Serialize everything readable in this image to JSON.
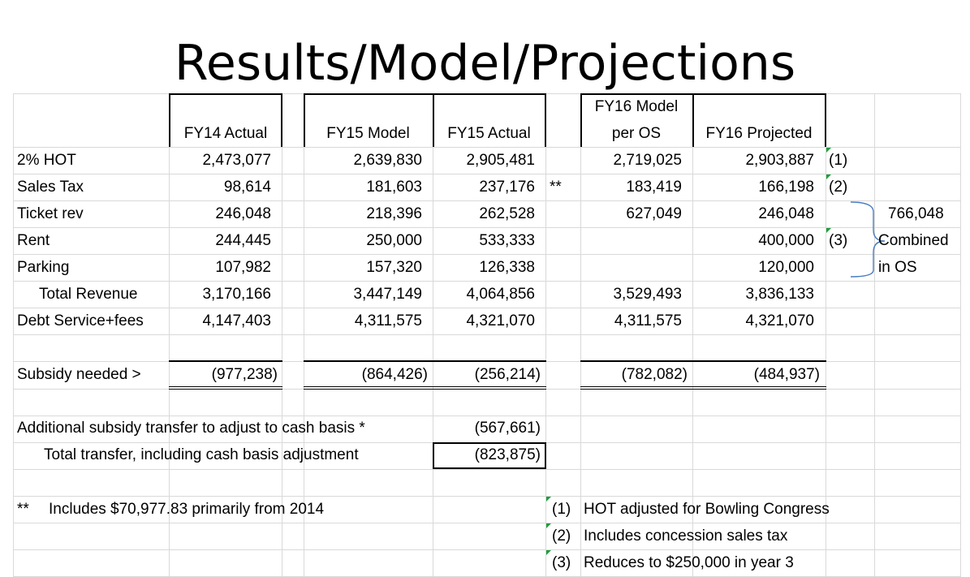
{
  "title": "Results/Model/Projections",
  "headers": {
    "fy14_actual": "FY14 Actual",
    "fy15_model": "FY15 Model",
    "fy15_actual": "FY15 Actual",
    "fy16_model_l1": "FY16 Model",
    "fy16_model_l2": "per OS",
    "fy16_projected": "FY16 Projected"
  },
  "rows": [
    {
      "label": "2% HOT",
      "fy14": "2,473,077",
      "fy15m": "2,639,830",
      "fy15a": "2,905,481",
      "mark": "",
      "fy16m": "2,719,025",
      "fy16p": "2,903,887",
      "note": "(1)"
    },
    {
      "label": "Sales Tax",
      "fy14": "98,614",
      "fy15m": "181,603",
      "fy15a": "237,176",
      "mark": "**",
      "fy16m": "183,419",
      "fy16p": "166,198",
      "note": "(2)"
    },
    {
      "label": "Ticket rev",
      "fy14": "246,048",
      "fy15m": "218,396",
      "fy15a": "262,528",
      "mark": "",
      "fy16m": "627,049",
      "fy16p": "246,048",
      "note": ""
    },
    {
      "label": "Rent",
      "fy14": "244,445",
      "fy15m": "250,000",
      "fy15a": "533,333",
      "mark": "",
      "fy16m": "",
      "fy16p": "400,000",
      "note": "(3)"
    },
    {
      "label": "Parking",
      "fy14": "107,982",
      "fy15m": "157,320",
      "fy15a": "126,338",
      "mark": "",
      "fy16m": "",
      "fy16p": "120,000",
      "note": ""
    },
    {
      "label": "Total Revenue",
      "fy14": "3,170,166",
      "fy15m": "3,447,149",
      "fy15a": "4,064,856",
      "mark": "",
      "fy16m": "3,529,493",
      "fy16p": "3,836,133",
      "note": ""
    },
    {
      "label": "Debt Service+fees",
      "fy14": "4,147,403",
      "fy15m": "4,311,575",
      "fy15a": "4,321,070",
      "mark": "",
      "fy16m": "4,311,575",
      "fy16p": "4,321,070",
      "note": ""
    }
  ],
  "subsidy": {
    "label": "Subsidy needed >",
    "fy14": "(977,238)",
    "fy15m": "(864,426)",
    "fy15a": "(256,214)",
    "fy16m": "(782,082)",
    "fy16p": "(484,937)"
  },
  "bracket": {
    "value": "766,048",
    "line1": "Combined",
    "line2": "in OS"
  },
  "additional": {
    "label": "Additional subsidy transfer to adjust to cash basis *",
    "value": "(567,661)"
  },
  "total_transfer": {
    "label": "Total transfer, including cash basis adjustment",
    "value": "(823,875)"
  },
  "footnote_star": {
    "mark": "**",
    "text": "Includes $70,977.83 primarily from 2014"
  },
  "footnotes": [
    {
      "num": "(1)",
      "text": "HOT adjusted for Bowling Congress"
    },
    {
      "num": "(2)",
      "text": "Includes concession sales tax"
    },
    {
      "num": "(3)",
      "text": "Reduces to $250,000 in year 3"
    }
  ]
}
